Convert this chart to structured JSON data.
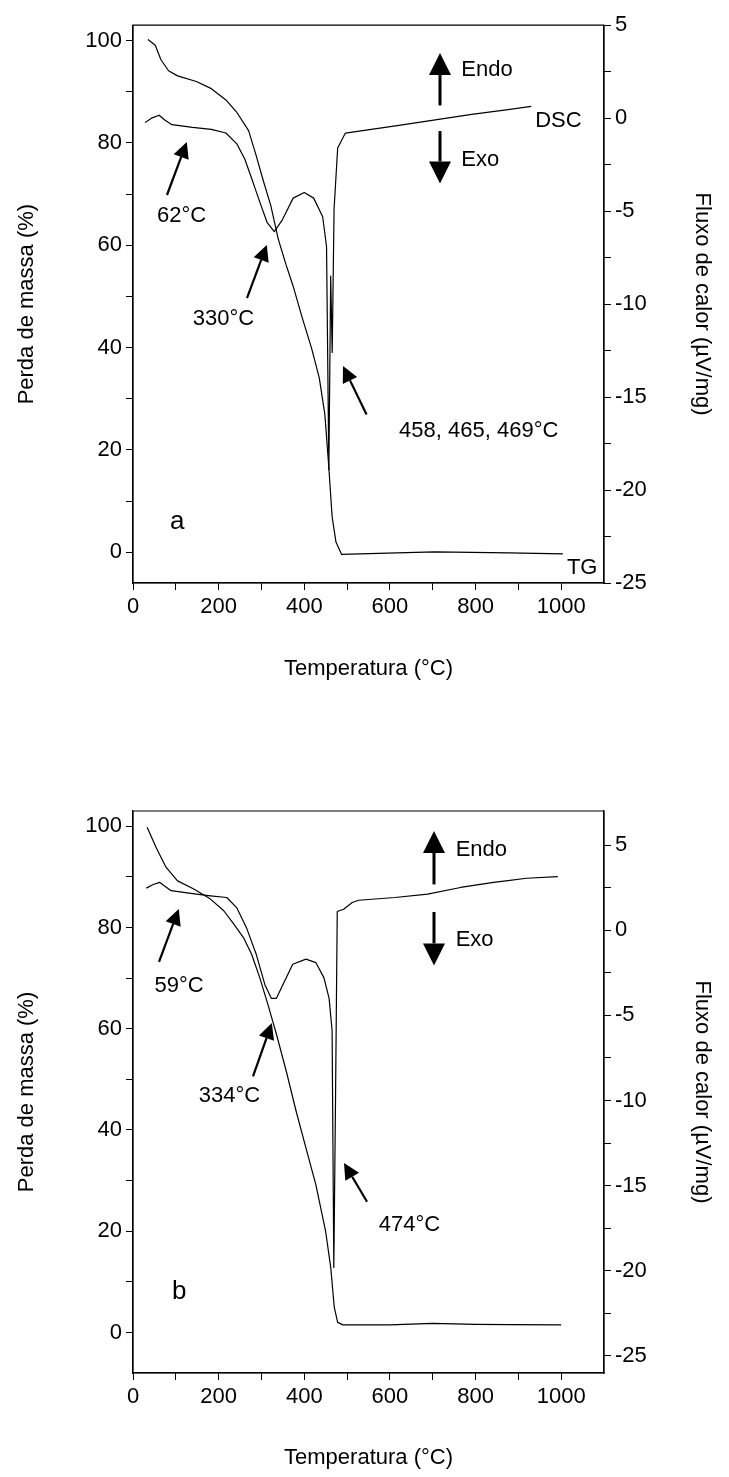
{
  "chart_data": [
    {
      "type": "line",
      "xlabel": "Temperatura (°C)",
      "ylabel": "Perda de massa (%)",
      "y2label": "Fluxo de calor (µV/mg)",
      "xlim": [
        0,
        1100
      ],
      "xticks": [
        0,
        {
          "value": 100,
          "label": null
        },
        200,
        {
          "value": 300,
          "label": null
        },
        400,
        {
          "value": 500,
          "label": null
        },
        600,
        {
          "value": 700,
          "label": null
        },
        800,
        {
          "value": 900,
          "label": null
        },
        1000
      ],
      "ylim": [
        -6,
        103
      ],
      "yticks": [
        0,
        {
          "value": 10,
          "label": null
        },
        20,
        {
          "value": 30,
          "label": null
        },
        40,
        {
          "value": 50,
          "label": null
        },
        60,
        {
          "value": 70,
          "label": null
        },
        80,
        {
          "value": 90,
          "label": null
        },
        100
      ],
      "y2lim": [
        -25,
        5
      ],
      "y2ticks": [
        5,
        {
          "value": 2.5,
          "label": null
        },
        0,
        {
          "value": -2.5,
          "label": null
        },
        -5,
        {
          "value": -7.5,
          "label": null
        },
        -10,
        {
          "value": -12.5,
          "label": null
        },
        -15,
        {
          "value": -17.5,
          "label": null
        },
        -20,
        {
          "value": -22.5,
          "label": null
        },
        -25
      ],
      "grid": false,
      "legend": false,
      "marker": "none",
      "line_style": "solid",
      "series": [
        {
          "name": "TG",
          "color": "#000000",
          "x": [
            35,
            52,
            65,
            83,
            104,
            148,
            183,
            217,
            243,
            270,
            287,
            304,
            322,
            339,
            357,
            374,
            396,
            417,
            435,
            448,
            457,
            465,
            474,
            487,
            530,
            704,
            878,
            1004
          ],
          "values": [
            100.2,
            99.1,
            96.3,
            94.1,
            93.1,
            92,
            90.6,
            88.4,
            85.9,
            82.4,
            77.7,
            72.7,
            67.7,
            61.3,
            56.3,
            52,
            45.6,
            39.9,
            34.1,
            27,
            17,
            7,
            2,
            -0.4,
            -0.3,
            0.1,
            -0.1,
            -0.3
          ]
        },
        {
          "name": "DSC",
          "color": "#000000",
          "axis": "y2",
          "x": [
            28,
            43,
            61,
            74,
            91,
            139,
            183,
            217,
            243,
            261,
            278,
            296,
            313,
            330,
            348,
            374,
            400,
            422,
            443,
            452,
            457.4,
            461.7,
            465.2,
            469.6,
            478,
            496,
            617,
            791,
            930
          ],
          "values": [
            -0.24,
            0,
            0.16,
            -0.1,
            -0.35,
            -0.5,
            -0.6,
            -0.8,
            -1.4,
            -2.2,
            -3.3,
            -4.5,
            -5.6,
            -6.1,
            -5.5,
            -4.3,
            -4,
            -4.3,
            -5.3,
            -6.9,
            -18.9,
            -8.5,
            -12.6,
            -4.9,
            -1.6,
            -0.8,
            -0.4,
            0.2,
            0.63
          ]
        }
      ],
      "annotations": [
        "Endo",
        "Exo",
        "a",
        "62°C",
        "330°C",
        "458, 465, 469°C"
      ]
    },
    {
      "type": "line",
      "xlabel": "Temperatura (°C)",
      "ylabel": "Perda de massa (%)",
      "y2label": "Fluxo de calor (µV/mg)",
      "xlim": [
        0,
        1100
      ],
      "xticks": [
        0,
        {
          "value": 100,
          "label": null
        },
        200,
        {
          "value": 300,
          "label": null
        },
        400,
        {
          "value": 500,
          "label": null
        },
        600,
        {
          "value": 700,
          "label": null
        },
        800,
        {
          "value": 900,
          "label": null
        },
        1000
      ],
      "ylim": [
        -8,
        103
      ],
      "yticks": [
        0,
        {
          "value": 10,
          "label": null
        },
        20,
        {
          "value": 30,
          "label": null
        },
        40,
        {
          "value": 50,
          "label": null
        },
        60,
        {
          "value": 70,
          "label": null
        },
        80,
        {
          "value": 90,
          "label": null
        },
        100
      ],
      "y2lim": [
        -26,
        7
      ],
      "y2ticks": [
        5,
        {
          "value": 2.5,
          "label": null
        },
        0,
        {
          "value": -2.5,
          "label": null
        },
        -5,
        {
          "value": -7.5,
          "label": null
        },
        -10,
        {
          "value": -12.5,
          "label": null
        },
        -15,
        {
          "value": -17.5,
          "label": null
        },
        -20,
        {
          "value": -22.5,
          "label": null
        },
        -25
      ],
      "grid": false,
      "legend": false,
      "marker": "none",
      "line_style": "solid",
      "series": [
        {
          "color": "#000000",
          "x": [
            33,
            54,
            77,
            104,
            142,
            181,
            212,
            235,
            258,
            277,
            296,
            315,
            335,
            358,
            381,
            404,
            427,
            450,
            462,
            470,
            478,
            490,
            600,
            700,
            800,
            1000
          ],
          "values": [
            99.8,
            95.8,
            91.9,
            89.2,
            87.6,
            85.6,
            83.3,
            80.7,
            78,
            74.7,
            70.1,
            64.8,
            58.9,
            51.6,
            43.7,
            36.4,
            29.2,
            19.9,
            12.7,
            5,
            2,
            1.5,
            1.5,
            1.8,
            1.6,
            1.5
          ]
        },
        {
          "color": "#000000",
          "axis": "y2",
          "x": [
            31,
            46,
            62,
            73,
            89,
            135,
            181,
            219,
            242,
            265,
            288,
            308,
            323,
            335,
            350,
            373,
            404,
            427,
            446,
            458,
            465,
            469,
            473,
            477,
            492,
            512,
            527,
            612,
            688,
            765,
            842,
            919,
            992
          ],
          "values": [
            2.47,
            2.67,
            2.81,
            2.61,
            2.32,
            2.16,
            2.02,
            1.92,
            1.33,
            0.15,
            -1.43,
            -3.2,
            -4,
            -4,
            -3.2,
            -2,
            -1.7,
            -1.9,
            -2.8,
            -4,
            -5.9,
            -19.8,
            -9.9,
            1.1,
            1.23,
            1.63,
            1.76,
            1.92,
            2.12,
            2.51,
            2.81,
            3.05,
            3.15
          ]
        }
      ],
      "annotations": [
        "Endo",
        "Exo",
        "b",
        "59°C",
        "334°C",
        "474°C"
      ]
    }
  ]
}
